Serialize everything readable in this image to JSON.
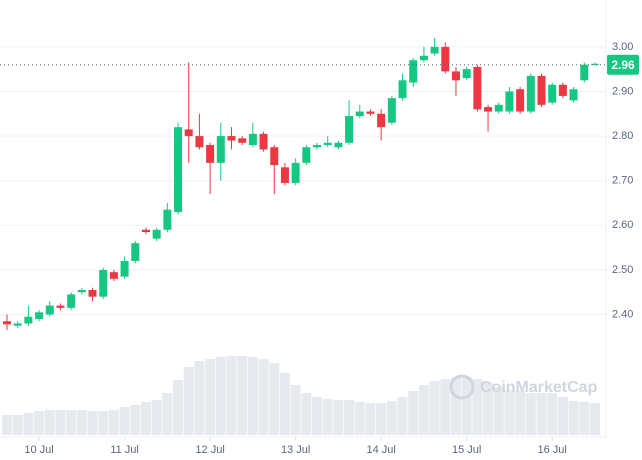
{
  "chart_data": {
    "type": "candlestick",
    "watermark": "CoinMarketCap",
    "up_color": "#16c784",
    "down_color": "#ea3943",
    "volume_color": "#e6eaee",
    "current_price": 2.96,
    "open": [
      2.385,
      2.375,
      2.38,
      2.39,
      2.4,
      2.42,
      2.415,
      2.45,
      2.455,
      2.44,
      2.495,
      2.485,
      2.52,
      2.59,
      2.57,
      2.59,
      2.63,
      2.815,
      2.8,
      2.78,
      2.74,
      2.8,
      2.795,
      2.78,
      2.805,
      2.775,
      2.73,
      2.695,
      2.74,
      2.775,
      2.78,
      2.775,
      2.785,
      2.845,
      2.855,
      2.85,
      2.83,
      2.885,
      2.92,
      2.97,
      2.985,
      3.0,
      2.945,
      2.93,
      2.955,
      2.865,
      2.855,
      2.855,
      2.905,
      2.855,
      2.935,
      2.875,
      2.915,
      2.88,
      2.925,
      2.96
    ],
    "close": [
      2.378,
      2.38,
      2.395,
      2.405,
      2.42,
      2.415,
      2.445,
      2.455,
      2.44,
      2.5,
      2.48,
      2.52,
      2.56,
      2.585,
      2.59,
      2.635,
      2.82,
      2.8,
      2.775,
      2.74,
      2.8,
      2.79,
      2.785,
      2.805,
      2.77,
      2.735,
      2.695,
      2.74,
      2.775,
      2.78,
      2.785,
      2.785,
      2.845,
      2.855,
      2.85,
      2.82,
      2.885,
      2.925,
      2.97,
      2.98,
      3.0,
      2.945,
      2.925,
      2.95,
      2.86,
      2.855,
      2.87,
      2.9,
      2.855,
      2.935,
      2.87,
      2.915,
      2.89,
      2.905,
      2.96,
      2.962
    ],
    "high": [
      2.4,
      2.385,
      2.42,
      2.41,
      2.43,
      2.425,
      2.45,
      2.46,
      2.46,
      2.505,
      2.5,
      2.53,
      2.565,
      2.595,
      2.595,
      2.65,
      2.83,
      2.965,
      2.85,
      2.785,
      2.83,
      2.82,
      2.8,
      2.83,
      2.81,
      2.78,
      2.74,
      2.75,
      2.78,
      2.785,
      2.8,
      2.79,
      2.88,
      2.87,
      2.86,
      2.86,
      2.89,
      2.94,
      2.975,
      3.0,
      3.02,
      3.01,
      2.955,
      2.955,
      2.96,
      2.87,
      2.875,
      2.91,
      2.91,
      2.94,
      2.94,
      2.92,
      2.92,
      2.91,
      2.965,
      2.965
    ],
    "low": [
      2.365,
      2.37,
      2.375,
      2.385,
      2.395,
      2.41,
      2.41,
      2.445,
      2.43,
      2.435,
      2.475,
      2.48,
      2.515,
      2.58,
      2.565,
      2.585,
      2.625,
      2.74,
      2.77,
      2.67,
      2.7,
      2.77,
      2.78,
      2.775,
      2.765,
      2.67,
      2.69,
      2.69,
      2.735,
      2.77,
      2.775,
      2.77,
      2.78,
      2.84,
      2.845,
      2.79,
      2.825,
      2.88,
      2.91,
      2.965,
      2.98,
      2.94,
      2.89,
      2.925,
      2.855,
      2.81,
      2.85,
      2.85,
      2.85,
      2.85,
      2.865,
      2.87,
      2.885,
      2.875,
      2.92,
      2.958
    ],
    "volume": [
      20,
      20,
      22,
      24,
      25,
      25,
      25,
      25,
      24,
      24,
      25,
      28,
      30,
      33,
      35,
      42,
      55,
      68,
      74,
      76,
      78,
      79,
      79,
      78,
      76,
      72,
      62,
      50,
      42,
      38,
      36,
      35,
      35,
      33,
      32,
      32,
      34,
      38,
      44,
      50,
      54,
      56,
      58,
      58,
      56,
      52,
      48,
      45,
      44,
      42,
      42,
      42,
      38,
      34,
      33,
      32
    ],
    "vlim": [
      0,
      100
    ],
    "ylim": [
      2.13,
      3.105
    ],
    "yticks": [
      {
        "value": 2.4,
        "label": "2.40"
      },
      {
        "value": 2.5,
        "label": "2.50"
      },
      {
        "value": 2.6,
        "label": "2.60"
      },
      {
        "value": 2.7,
        "label": "2.70"
      },
      {
        "value": 2.8,
        "label": "2.80"
      },
      {
        "value": 2.9,
        "label": "2.90"
      },
      {
        "value": 3.0,
        "label": "3.00"
      }
    ],
    "xticks": [
      {
        "value": 3,
        "label": "10 Jul"
      },
      {
        "value": 11,
        "label": "11 Jul"
      },
      {
        "value": 19,
        "label": "12 Jul"
      },
      {
        "value": 27,
        "label": "13 Jul"
      },
      {
        "value": 35,
        "label": "14 Jul"
      },
      {
        "value": 43,
        "label": "15 Jul"
      },
      {
        "value": 51,
        "label": "16 Jul"
      }
    ],
    "grid": true
  }
}
